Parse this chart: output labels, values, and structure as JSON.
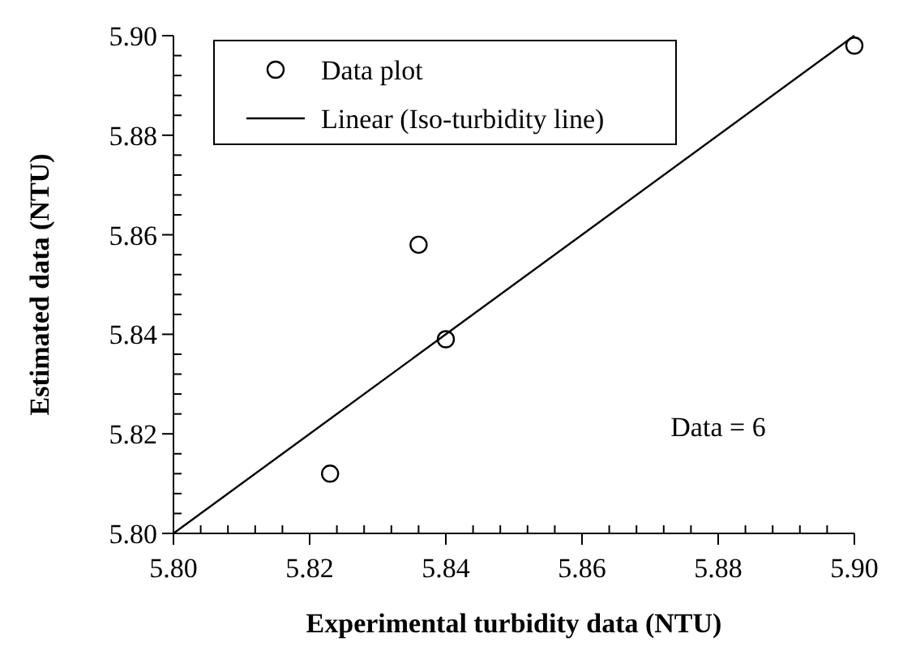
{
  "chart_data": {
    "type": "scatter",
    "xlabel": "Experimental turbidity data (NTU)",
    "ylabel": "Estimated data (NTU)",
    "xlim": [
      5.8,
      5.9
    ],
    "ylim": [
      5.8,
      5.9
    ],
    "xticks": [
      {
        "value": 5.8,
        "label": "5.80"
      },
      {
        "value": 5.804,
        "label": null
      },
      {
        "value": 5.808,
        "label": null
      },
      {
        "value": 5.812,
        "label": null
      },
      {
        "value": 5.816,
        "label": null
      },
      {
        "value": 5.82,
        "label": "5.82"
      },
      {
        "value": 5.824,
        "label": null
      },
      {
        "value": 5.828,
        "label": null
      },
      {
        "value": 5.832,
        "label": null
      },
      {
        "value": 5.836,
        "label": null
      },
      {
        "value": 5.84,
        "label": "5.84"
      },
      {
        "value": 5.844,
        "label": null
      },
      {
        "value": 5.848,
        "label": null
      },
      {
        "value": 5.852,
        "label": null
      },
      {
        "value": 5.856,
        "label": null
      },
      {
        "value": 5.86,
        "label": "5.86"
      },
      {
        "value": 5.864,
        "label": null
      },
      {
        "value": 5.868,
        "label": null
      },
      {
        "value": 5.872,
        "label": null
      },
      {
        "value": 5.876,
        "label": null
      },
      {
        "value": 5.88,
        "label": "5.88"
      },
      {
        "value": 5.884,
        "label": null
      },
      {
        "value": 5.888,
        "label": null
      },
      {
        "value": 5.892,
        "label": null
      },
      {
        "value": 5.896,
        "label": null
      },
      {
        "value": 5.9,
        "label": "5.90"
      }
    ],
    "yticks": [
      {
        "value": 5.8,
        "label": "5.80"
      },
      {
        "value": 5.804,
        "label": null
      },
      {
        "value": 5.808,
        "label": null
      },
      {
        "value": 5.812,
        "label": null
      },
      {
        "value": 5.816,
        "label": null
      },
      {
        "value": 5.82,
        "label": "5.82"
      },
      {
        "value": 5.824,
        "label": null
      },
      {
        "value": 5.828,
        "label": null
      },
      {
        "value": 5.832,
        "label": null
      },
      {
        "value": 5.836,
        "label": null
      },
      {
        "value": 5.84,
        "label": "5.84"
      },
      {
        "value": 5.844,
        "label": null
      },
      {
        "value": 5.848,
        "label": null
      },
      {
        "value": 5.852,
        "label": null
      },
      {
        "value": 5.856,
        "label": null
      },
      {
        "value": 5.86,
        "label": "5.86"
      },
      {
        "value": 5.864,
        "label": null
      },
      {
        "value": 5.868,
        "label": null
      },
      {
        "value": 5.872,
        "label": null
      },
      {
        "value": 5.876,
        "label": null
      },
      {
        "value": 5.88,
        "label": "5.88"
      },
      {
        "value": 5.884,
        "label": null
      },
      {
        "value": 5.888,
        "label": null
      },
      {
        "value": 5.892,
        "label": null
      },
      {
        "value": 5.896,
        "label": null
      },
      {
        "value": 5.9,
        "label": "5.90"
      }
    ],
    "series": [
      {
        "name": "Data plot",
        "color": "#000000",
        "marker": "circle",
        "x": [
          5.823,
          5.836,
          5.84,
          5.9
        ],
        "values": [
          5.812,
          5.858,
          5.839,
          5.898
        ]
      },
      {
        "name": "Linear (Iso-turbidity line)",
        "type": "line",
        "color": "#000000",
        "line_style": "solid",
        "x": [
          5.8,
          5.9
        ],
        "values": [
          5.8,
          5.9
        ]
      }
    ],
    "annotations": [
      "Data = 6"
    ],
    "legend": "top left",
    "grid": false
  }
}
